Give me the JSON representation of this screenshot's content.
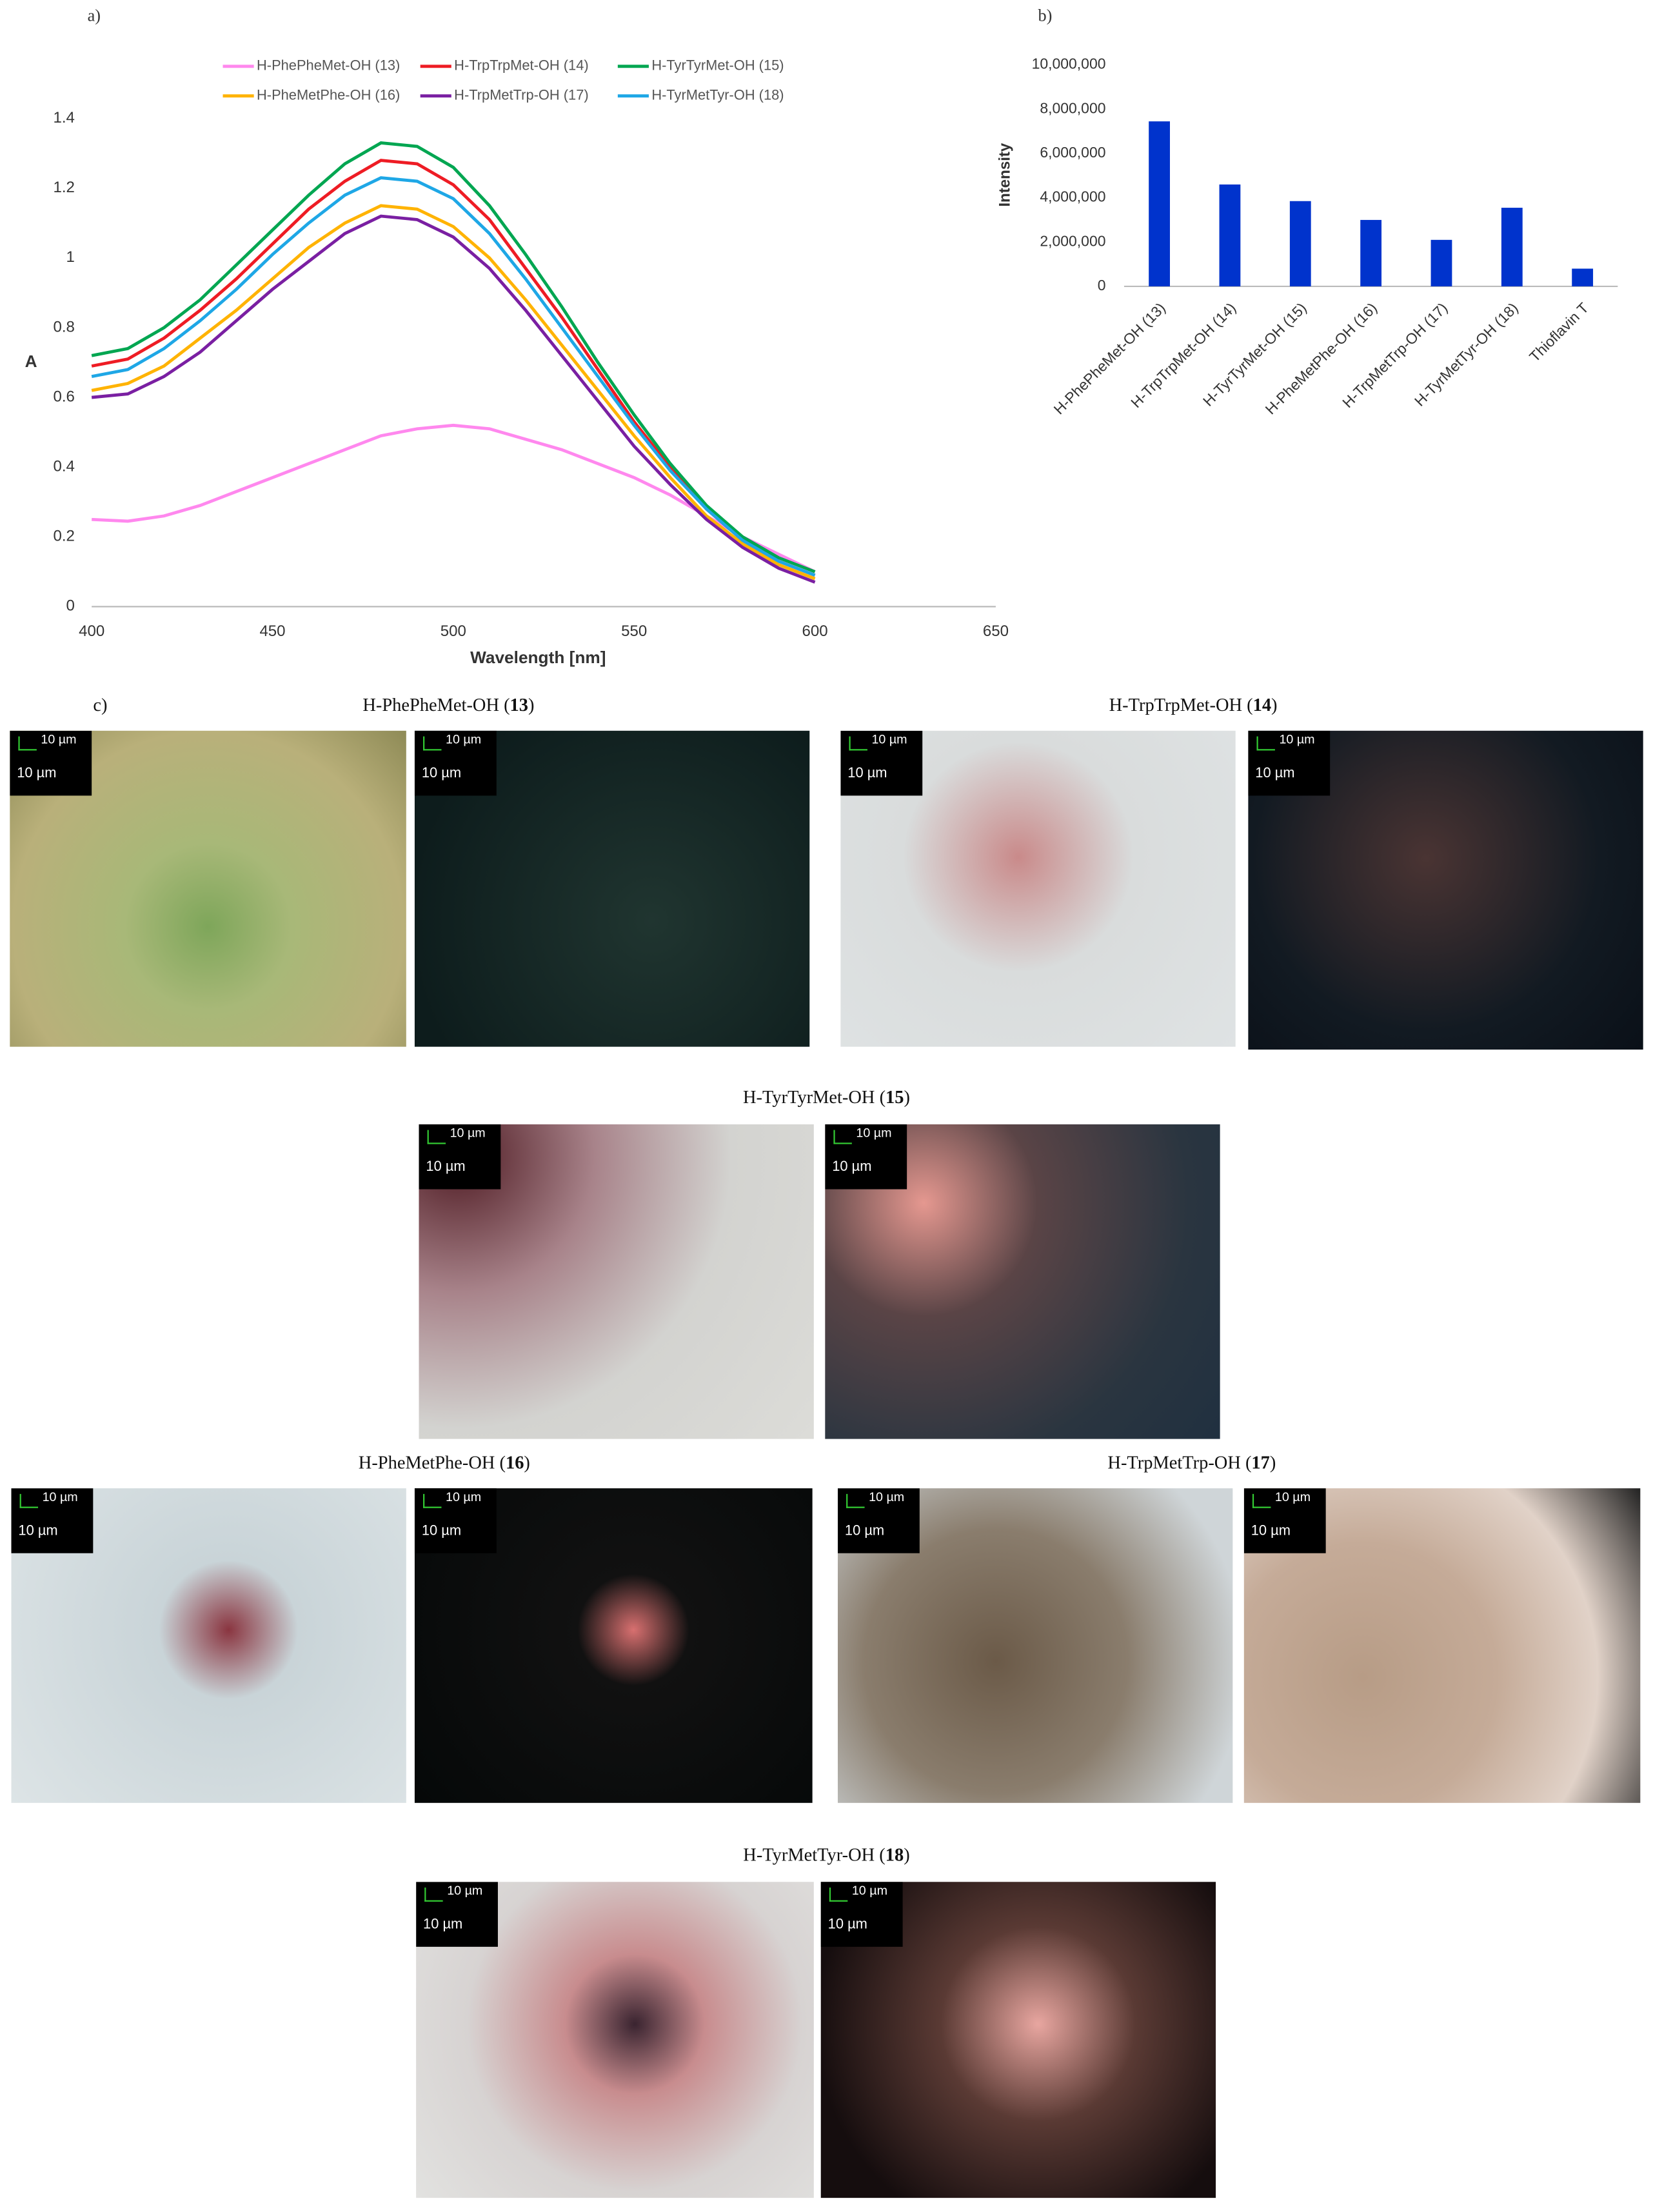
{
  "chart_data": [
    {
      "type": "line",
      "panel_label": "a)",
      "x_label": "Wavelength [nm]",
      "y_label": "A",
      "x": [
        400,
        410,
        420,
        430,
        440,
        450,
        460,
        470,
        480,
        490,
        500,
        510,
        520,
        530,
        540,
        550,
        560,
        570,
        580,
        590,
        600
      ],
      "series": [
        {
          "name": "H-PhePheMet-OH (13)",
          "color": "#ff88ee",
          "values": [
            0.25,
            0.245,
            0.26,
            0.29,
            0.33,
            0.37,
            0.41,
            0.45,
            0.49,
            0.51,
            0.52,
            0.51,
            0.48,
            0.45,
            0.41,
            0.37,
            0.32,
            0.26,
            0.2,
            0.15,
            0.1
          ]
        },
        {
          "name": "H-TrpTrpMet-OH (14)",
          "color": "#ee1c24",
          "values": [
            0.69,
            0.71,
            0.77,
            0.85,
            0.94,
            1.04,
            1.14,
            1.22,
            1.28,
            1.27,
            1.21,
            1.11,
            0.97,
            0.83,
            0.68,
            0.53,
            0.4,
            0.28,
            0.19,
            0.13,
            0.09
          ]
        },
        {
          "name": "H-TyrTyrMet-OH (15)",
          "color": "#00a651",
          "values": [
            0.72,
            0.74,
            0.8,
            0.88,
            0.98,
            1.08,
            1.18,
            1.27,
            1.33,
            1.32,
            1.26,
            1.15,
            1.01,
            0.86,
            0.7,
            0.55,
            0.41,
            0.29,
            0.2,
            0.14,
            0.1
          ]
        },
        {
          "name": "H-PheMetPhe-OH (16)",
          "color": "#ffb300",
          "values": [
            0.62,
            0.64,
            0.69,
            0.77,
            0.85,
            0.94,
            1.03,
            1.1,
            1.15,
            1.14,
            1.09,
            1.0,
            0.88,
            0.75,
            0.62,
            0.49,
            0.37,
            0.26,
            0.18,
            0.12,
            0.08
          ]
        },
        {
          "name": "H-TrpMetTrp-OH (17)",
          "color": "#7a1fa2",
          "values": [
            0.6,
            0.61,
            0.66,
            0.73,
            0.82,
            0.91,
            0.99,
            1.07,
            1.12,
            1.11,
            1.06,
            0.97,
            0.85,
            0.72,
            0.59,
            0.46,
            0.35,
            0.25,
            0.17,
            0.11,
            0.07
          ]
        },
        {
          "name": "H-TyrMetTyr-OH (18)",
          "color": "#1ea7e6",
          "values": [
            0.66,
            0.68,
            0.74,
            0.82,
            0.91,
            1.01,
            1.1,
            1.18,
            1.23,
            1.22,
            1.17,
            1.07,
            0.94,
            0.8,
            0.66,
            0.52,
            0.39,
            0.28,
            0.19,
            0.13,
            0.09
          ]
        }
      ],
      "xlim": [
        400,
        650
      ],
      "xticks": [
        400,
        450,
        500,
        550,
        600,
        650
      ],
      "ylim": [
        0,
        1.4
      ],
      "yticks": [
        0,
        0.2,
        0.4,
        0.6,
        0.8,
        1,
        1.2,
        1.4
      ],
      "legend": "top",
      "grid": false
    },
    {
      "type": "bar",
      "panel_label": "b)",
      "y_label": "Intensity",
      "color": "#0033cc",
      "categories": [
        "H-PhePheMet-OH (13)",
        "H-TrpTrpMet-OH (14)",
        "H-TyrTyrMet-OH (15)",
        "H-PheMetPhe-OH (16)",
        "H-TrpMetTrp-OH (17)",
        "H-TyrMetTyr-OH (18)",
        "Thioflavin T"
      ],
      "values": [
        7450000,
        4600000,
        3850000,
        3000000,
        2100000,
        3550000,
        800000
      ],
      "ylim": [
        0,
        10000000
      ],
      "yticks": [
        0,
        {
          "value": 2000000,
          "label": "2,000,000"
        },
        {
          "value": 4000000,
          "label": "4,000,000"
        },
        {
          "value": 6000000,
          "label": "6,000,000"
        },
        {
          "value": 8000000,
          "label": "8,000,000"
        },
        {
          "value": 10000000,
          "label": "10,000,000"
        }
      ],
      "grid": false
    }
  ],
  "micrographs_label": "c)",
  "micrographs": [
    {
      "title_prefix": "H-PhePheMet-OH (",
      "title_number": "13",
      "title_suffix": ")",
      "images": [
        {
          "scale_bar": "10 µm",
          "label": "10 µm"
        },
        {
          "scale_bar": "10 µm",
          "label": "10 µm"
        }
      ]
    },
    {
      "title_prefix": "H-TrpTrpMet-OH (",
      "title_number": "14",
      "title_suffix": ")",
      "images": [
        {
          "scale_bar": "10 µm",
          "label": "10 µm"
        },
        {
          "scale_bar": "10 µm",
          "label": "10 µm"
        }
      ]
    },
    {
      "title_prefix": "H-TyrTyrMet-OH (",
      "title_number": "15",
      "title_suffix": ")",
      "images": [
        {
          "scale_bar": "10 µm",
          "label": "10 µm"
        },
        {
          "scale_bar": "10 µm",
          "label": "10 µm"
        }
      ]
    },
    {
      "title_prefix": "H-PheMetPhe-OH (",
      "title_number": "16",
      "title_suffix": ")",
      "images": [
        {
          "scale_bar": "10 µm",
          "label": "10 µm"
        },
        {
          "scale_bar": "10 µm",
          "label": "10 µm"
        }
      ]
    },
    {
      "title_prefix": "H-TrpMetTrp-OH (",
      "title_number": "17",
      "title_suffix": ")",
      "images": [
        {
          "scale_bar": "10 µm",
          "label": "10 µm"
        },
        {
          "scale_bar": "10 µm",
          "label": "10 µm"
        }
      ]
    },
    {
      "title_prefix": "H-TyrMetTyr-OH (",
      "title_number": "18",
      "title_suffix": ")",
      "images": [
        {
          "scale_bar": "10 µm",
          "label": "10 µm"
        },
        {
          "scale_bar": "10 µm",
          "label": "10 µm"
        }
      ]
    }
  ]
}
